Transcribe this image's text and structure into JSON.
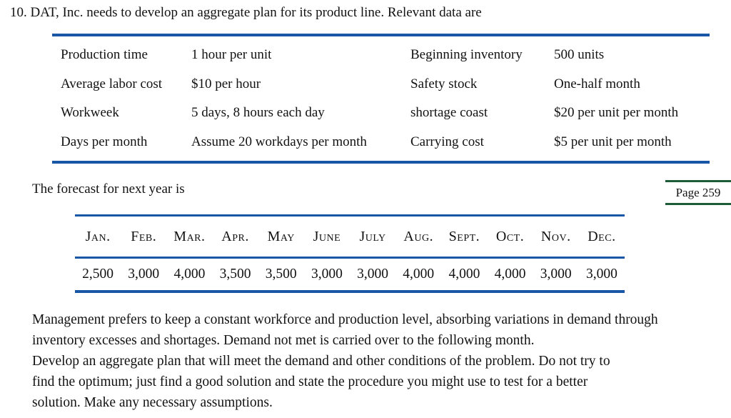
{
  "page": {
    "heading": "10. DAT, Inc. needs to develop an aggregate plan for its product line. Relevant data are"
  },
  "colors": {
    "rule_blue": "#1857a6",
    "marker_green": "#1e5c38"
  },
  "data_table": {
    "rows": [
      {
        "label_left": "Production time",
        "value_left": "1 hour per unit",
        "label_right": "Beginning inventory",
        "value_right": "500 units"
      },
      {
        "label_left": "Average labor cost",
        "value_left": "$10 per hour",
        "label_right": "Safety stock",
        "value_right": "One-half month"
      },
      {
        "label_left": "Workweek",
        "value_left": "5 days, 8 hours each day",
        "label_right": "shortage coast",
        "value_right": "$20 per unit per month"
      },
      {
        "label_left": "Days per month",
        "value_left": "Assume 20 workdays per month",
        "label_right": "Carrying cost",
        "value_right": "$5 per unit per month"
      }
    ]
  },
  "forecast": {
    "intro": "The forecast for next year is",
    "months": [
      "Jan.",
      "Feb.",
      "Mar.",
      "Apr.",
      "May",
      "June",
      "July",
      "Aug.",
      "Sept.",
      "Oct.",
      "Nov.",
      "Dec."
    ],
    "values": [
      "2,500",
      "3,000",
      "4,000",
      "3,500",
      "3,500",
      "3,000",
      "3,000",
      "4,000",
      "4,000",
      "4,000",
      "3,000",
      "3,000"
    ]
  },
  "page_marker": {
    "label": "Page 259"
  },
  "paragraphs": [
    {
      "lines": [
        "Management prefers to keep a constant workforce and production level, absorbing variations in demand through",
        "inventory excesses and shortages. Demand not met is carried over to the following month."
      ]
    },
    {
      "lines": [
        "Develop an aggregate plan that will meet the demand and other conditions of the problem. Do not try to",
        "find the optimum; just find a good solution and state the procedure you might use to test for a better",
        "solution. Make any necessary assumptions."
      ]
    }
  ]
}
